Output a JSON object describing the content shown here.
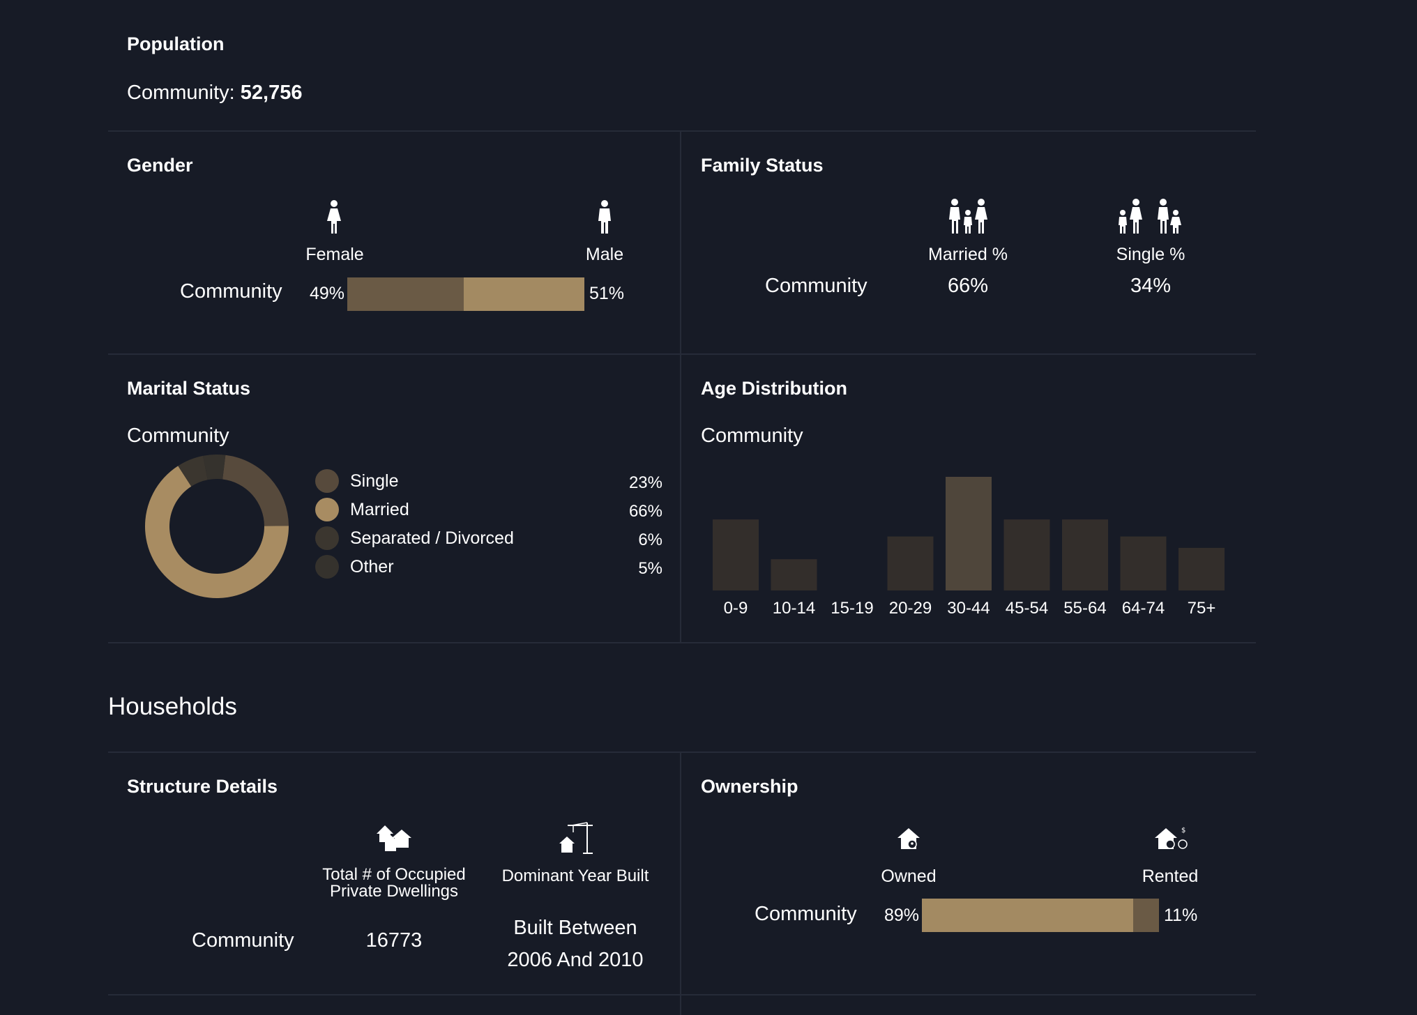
{
  "population": {
    "title": "Population",
    "community_label": "Community:",
    "community_value": "52,756"
  },
  "gender": {
    "title": "Gender",
    "female_label": "Female",
    "male_label": "Male",
    "community_label": "Community",
    "female_pct": "49%",
    "male_pct": "51%",
    "female_share": 49,
    "male_share": 51,
    "female_color": "#6a5a45",
    "male_color": "#a38a62"
  },
  "family": {
    "title": "Family Status",
    "married_label": "Married %",
    "single_label": "Single %",
    "community_label": "Community",
    "married_value": "66%",
    "single_value": "34%"
  },
  "marital": {
    "title": "Marital Status",
    "community_label": "Community",
    "items": [
      {
        "label": "Single",
        "pct": "23%",
        "value": 23,
        "color": "#574a3c"
      },
      {
        "label": "Married",
        "pct": "66%",
        "value": 66,
        "color": "#a88c62"
      },
      {
        "label": "Separated / Divorced",
        "pct": "6%",
        "value": 6,
        "color": "#3b362f"
      },
      {
        "label": "Other",
        "pct": "5%",
        "value": 5,
        "color": "#35322d"
      }
    ]
  },
  "age": {
    "title": "Age Distribution",
    "community_label": "Community"
  },
  "chart_data": {
    "type": "bar",
    "categories": [
      "0-9",
      "10-14",
      "15-19",
      "20-29",
      "30-44",
      "45-54",
      "55-64",
      "64-74",
      "75+"
    ],
    "values": [
      12.5,
      5.5,
      0,
      9.5,
      20,
      12.5,
      12.5,
      9.5,
      7.5
    ],
    "highlight_index": 4,
    "bar_color": "#332e2b",
    "highlight_color": "#4f463b",
    "ylim": [
      0,
      20
    ],
    "grid": false,
    "title": "",
    "xlabel": "",
    "ylabel": ""
  },
  "households": {
    "title": "Households"
  },
  "structure": {
    "title": "Structure Details",
    "dwellings_label_line1": "Total # of Occupied",
    "dwellings_label_line2": "Private Dwellings",
    "year_label": "Dominant Year Built",
    "community_label": "Community",
    "dwellings_value": "16773",
    "year_value_line1": "Built Between",
    "year_value_line2": "2006 And 2010"
  },
  "ownership": {
    "title": "Ownership",
    "owned_label": "Owned",
    "rented_label": "Rented",
    "community_label": "Community",
    "owned_pct": "89%",
    "rented_pct": "11%",
    "owned_share": 89,
    "rented_share": 11,
    "owned_color": "#a38a62",
    "rented_color": "#6a5a45"
  }
}
